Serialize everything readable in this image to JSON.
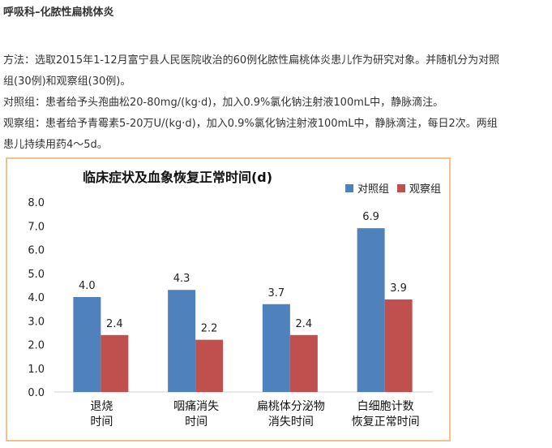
{
  "heading": "呼吸科–化脓性扁桃体炎",
  "paragraphs": {
    "method_a": "方法：选取2015年1-12月富宁县人民医院收治的60例化脓性扁桃体炎患儿作为研究对象。并随机分为对照",
    "method_b": "组(30例)和观察组(30例)。",
    "control": "对照组：患者给予头孢曲松20-80mg/(kg·d)，加入0.9%氯化钠注射液100mL中，静脉滴注。",
    "observe_a": "观察组：患者给予青霉素5-20万U/(kg·d)，加入0.9%氯化钠注射液100mL中，静脉滴注，每日2次。两组",
    "observe_b": "患儿持续用药4～5d。"
  },
  "chart_data": {
    "type": "bar",
    "title": "临床症状及血象恢复正常时间(d)",
    "categories": [
      [
        "退烧",
        "时间"
      ],
      [
        "咽痛消失",
        "时间"
      ],
      [
        "扁桃体分泌物",
        "消失时间"
      ],
      [
        "白细胞计数",
        "恢复正常时间"
      ]
    ],
    "series": [
      {
        "name": "对照组",
        "color": "#4f81bd",
        "values": [
          4.0,
          4.3,
          3.7,
          6.9
        ],
        "labels": [
          "4.0",
          "4.3",
          "3.7",
          "6.9"
        ]
      },
      {
        "name": "观察组",
        "color": "#c0504d",
        "values": [
          2.4,
          2.2,
          2.4,
          3.9
        ],
        "labels": [
          "2.4",
          "2.2",
          "2.4",
          "3.9"
        ]
      }
    ],
    "ylim": [
      0,
      8
    ],
    "yticks": [
      "0.0",
      "1.0",
      "2.0",
      "3.0",
      "4.0",
      "5.0",
      "6.0",
      "7.0",
      "8.0"
    ],
    "grid": false,
    "legend_position": "top-right",
    "frame_color": "#f1c38b"
  }
}
